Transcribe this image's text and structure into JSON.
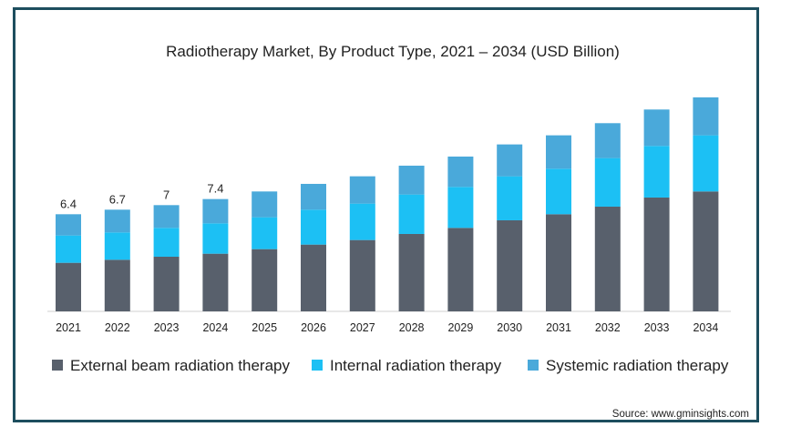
{
  "chart_data": {
    "type": "bar",
    "stacked": true,
    "title": "Radiotherapy Market, By Product Type, 2021 – 2034 (USD Billion)",
    "categories": [
      "2021",
      "2022",
      "2023",
      "2024",
      "2025",
      "2026",
      "2027",
      "2028",
      "2029",
      "2030",
      "2031",
      "2032",
      "2033",
      "2034"
    ],
    "series": [
      {
        "name": "External beam radiation therapy",
        "color": "#58606c",
        "values": [
          3.2,
          3.4,
          3.6,
          3.8,
          4.1,
          4.4,
          4.7,
          5.1,
          5.5,
          6.0,
          6.4,
          6.9,
          7.5,
          7.9
        ]
      },
      {
        "name": "Internal radiation therapy",
        "color": "#1cc0f4",
        "values": [
          1.8,
          1.8,
          1.9,
          2.0,
          2.1,
          2.3,
          2.4,
          2.6,
          2.7,
          2.9,
          3.0,
          3.2,
          3.4,
          3.7
        ]
      },
      {
        "name": "Systemic radiation therapy",
        "color": "#4aa9da",
        "values": [
          1.4,
          1.5,
          1.5,
          1.6,
          1.7,
          1.7,
          1.8,
          1.9,
          2.0,
          2.1,
          2.2,
          2.3,
          2.4,
          2.5
        ]
      }
    ],
    "data_labels": [
      "6.4",
      "6.7",
      "7",
      "7.4",
      "",
      "",
      "",
      "",
      "",
      "",
      "",
      "",
      "",
      ""
    ],
    "ylim": [
      0,
      15
    ],
    "grid": false,
    "legend_position": "bottom"
  },
  "source": "Source: www.gminsights.com"
}
